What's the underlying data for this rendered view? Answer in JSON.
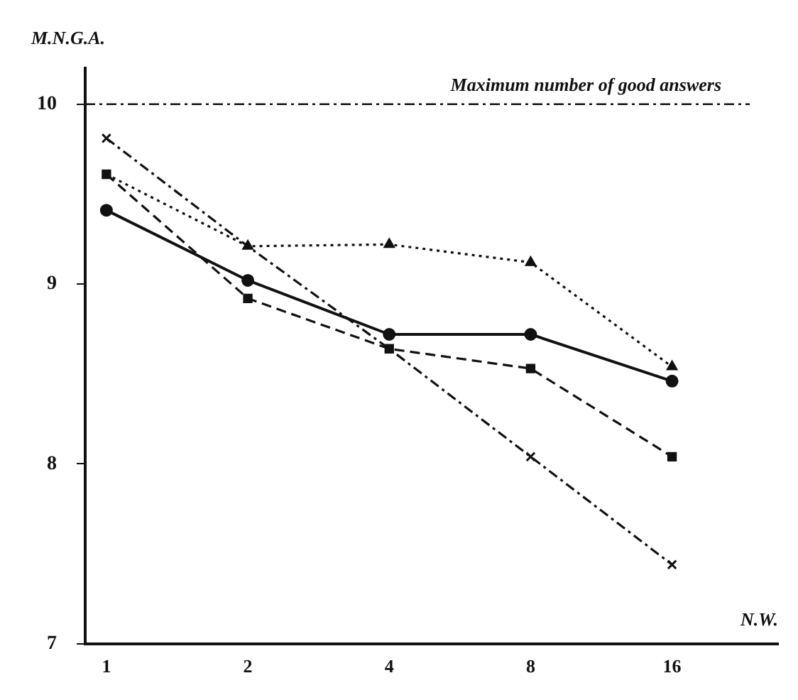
{
  "chart_data": {
    "type": "line",
    "xlabel": "N.W.",
    "ylabel": "M.N.G.A.",
    "categories": [
      "1",
      "2",
      "4",
      "8",
      "16"
    ],
    "ylim": [
      7,
      10.2
    ],
    "yticks": [
      7,
      8,
      9,
      10
    ],
    "grid": false,
    "legend": false,
    "series": [
      {
        "color": "#111111",
        "marker": "circle",
        "line_style": "solid",
        "values": [
          9.41,
          9.02,
          8.72,
          8.72,
          8.46
        ]
      },
      {
        "color": "#111111",
        "marker": "square",
        "line_style": "dashed",
        "values": [
          9.61,
          8.92,
          8.64,
          8.53,
          8.04
        ]
      },
      {
        "color": "#111111",
        "marker": "triangle",
        "line_style": "dotted",
        "values": [
          9.61,
          9.21,
          9.22,
          9.12,
          8.54
        ]
      },
      {
        "color": "#111111",
        "marker": "cross",
        "line_style": "dashdot",
        "values": [
          9.81,
          9.21,
          8.64,
          8.04,
          7.44
        ]
      }
    ],
    "ref_lines": [
      {
        "axis": "y",
        "value": 10,
        "label": "Maximum number of good answers",
        "line_style": "dashdot",
        "color": "#111111"
      }
    ]
  }
}
